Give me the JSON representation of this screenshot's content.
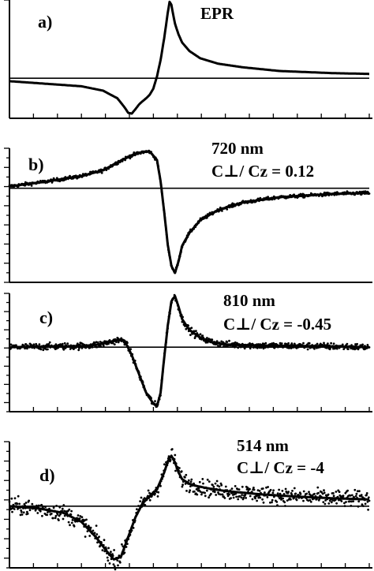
{
  "chart_data": [
    {
      "type": "line",
      "panel_label": "a)",
      "annotation": [
        "EPR"
      ],
      "baseline": 0,
      "ylim": [
        -1.1,
        2.15
      ],
      "x_range": [
        0,
        1
      ],
      "grid": false,
      "series": [
        {
          "style": "line",
          "x": [
            0,
            0.2,
            0.26,
            0.3,
            0.32,
            0.33,
            0.34,
            0.35,
            0.36,
            0.37,
            0.38,
            0.39,
            0.4,
            0.41,
            0.42,
            0.43,
            0.44,
            0.445,
            0.45,
            0.455,
            0.46,
            0.47,
            0.48,
            0.5,
            0.53,
            0.58,
            0.65,
            0.75,
            0.9,
            1.0
          ],
          "values": [
            -0.08,
            -0.22,
            -0.34,
            -0.55,
            -0.8,
            -0.95,
            -0.97,
            -0.85,
            -0.72,
            -0.63,
            -0.55,
            -0.45,
            -0.28,
            0.05,
            0.5,
            1.1,
            1.8,
            2.1,
            2.02,
            1.75,
            1.5,
            1.2,
            0.98,
            0.75,
            0.55,
            0.4,
            0.3,
            0.2,
            0.14,
            0.12
          ]
        }
      ]
    },
    {
      "type": "scatter",
      "panel_label": "b)",
      "annotation": [
        "720 nm",
        "C⊥/ Cz = 0.12"
      ],
      "baseline": 0,
      "ylim": [
        -2.0,
        0.85
      ],
      "x_range": [
        0,
        1
      ],
      "grid": false,
      "series": [
        {
          "style": "line",
          "x": [
            0,
            0.1,
            0.2,
            0.26,
            0.3,
            0.34,
            0.37,
            0.39,
            0.41,
            0.42,
            0.43,
            0.44,
            0.45,
            0.46,
            0.47,
            0.48,
            0.5,
            0.53,
            0.58,
            0.65,
            0.75,
            0.9,
            1.0
          ],
          "values": [
            0.04,
            0.14,
            0.26,
            0.38,
            0.55,
            0.7,
            0.77,
            0.78,
            0.6,
            0.15,
            -0.5,
            -1.2,
            -1.65,
            -1.8,
            -1.55,
            -1.22,
            -0.95,
            -0.68,
            -0.46,
            -0.3,
            -0.19,
            -0.12,
            -0.1
          ]
        }
      ],
      "scatter_noise": 0.035
    },
    {
      "type": "scatter",
      "panel_label": "c)",
      "annotation": [
        "810 nm",
        "C⊥/ Cz = -0.45"
      ],
      "baseline": 0,
      "ylim": [
        -1.2,
        1.0
      ],
      "x_range": [
        0,
        1
      ],
      "grid": false,
      "series": [
        {
          "style": "line",
          "x": [
            0,
            0.2,
            0.25,
            0.3,
            0.32,
            0.34,
            0.36,
            0.38,
            0.4,
            0.41,
            0.42,
            0.43,
            0.44,
            0.45,
            0.46,
            0.47,
            0.48,
            0.5,
            0.53,
            0.56,
            0.6,
            0.7,
            0.85,
            1.0
          ],
          "values": [
            0.0,
            0.02,
            0.05,
            0.13,
            0.12,
            -0.15,
            -0.5,
            -0.85,
            -1.05,
            -1.1,
            -0.85,
            -0.2,
            0.4,
            0.85,
            0.95,
            0.75,
            0.52,
            0.32,
            0.18,
            0.1,
            0.05,
            0.03,
            0.02,
            0.0
          ]
        }
      ],
      "scatter_noise": 0.06
    },
    {
      "type": "scatter",
      "panel_label": "d)",
      "annotation": [
        "514 nm",
        "C⊥/ Cz = -4"
      ],
      "baseline": 0,
      "ylim": [
        -1.1,
        1.15
      ],
      "x_range": [
        0,
        1
      ],
      "grid": false,
      "series": [
        {
          "style": "line",
          "x": [
            0,
            0.08,
            0.15,
            0.2,
            0.24,
            0.27,
            0.29,
            0.31,
            0.33,
            0.35,
            0.37,
            0.39,
            0.41,
            0.43,
            0.44,
            0.45,
            0.46,
            0.47,
            0.48,
            0.5,
            0.52,
            0.55,
            0.6,
            0.7,
            0.8,
            0.9,
            1.0
          ],
          "values": [
            0.0,
            -0.04,
            -0.12,
            -0.28,
            -0.55,
            -0.8,
            -0.95,
            -0.9,
            -0.55,
            -0.2,
            0.05,
            0.18,
            0.3,
            0.6,
            0.8,
            0.9,
            0.78,
            0.6,
            0.48,
            0.4,
            0.36,
            0.32,
            0.27,
            0.21,
            0.17,
            0.14,
            0.12
          ]
        }
      ],
      "scatter_noise": 0.14
    }
  ]
}
